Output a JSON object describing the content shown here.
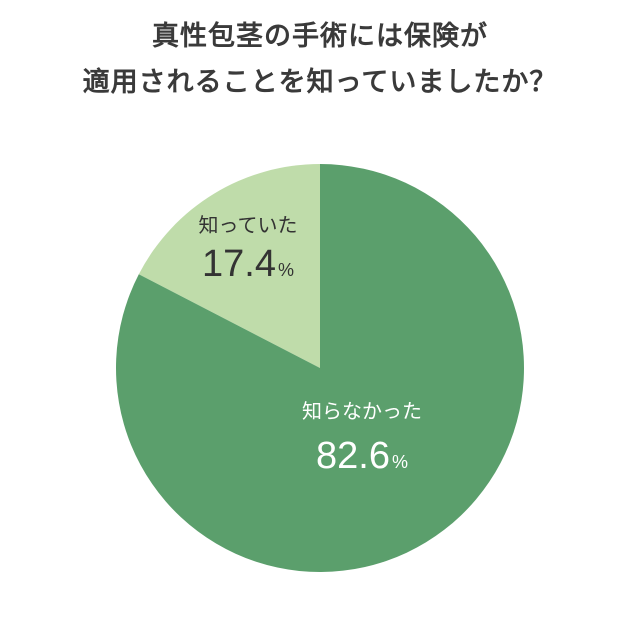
{
  "title_lines": [
    "真性包茎の手術には保険が",
    "適用されることを知っていましたか？"
  ],
  "chart_data": {
    "type": "pie",
    "title": "真性包茎の手術には保険が適用されることを知っていましたか？",
    "slices": [
      {
        "label": "知っていた",
        "value": 17.4,
        "value_text": "17.4",
        "unit": "%",
        "color": "#bfdcaa",
        "text_color": "#333333"
      },
      {
        "label": "知らなかった",
        "value": 82.6,
        "value_text": "82.6",
        "unit": "%",
        "color": "#5b9f6c",
        "text_color": "#ffffff"
      }
    ],
    "start": "top",
    "direction": "counterclockwise"
  }
}
